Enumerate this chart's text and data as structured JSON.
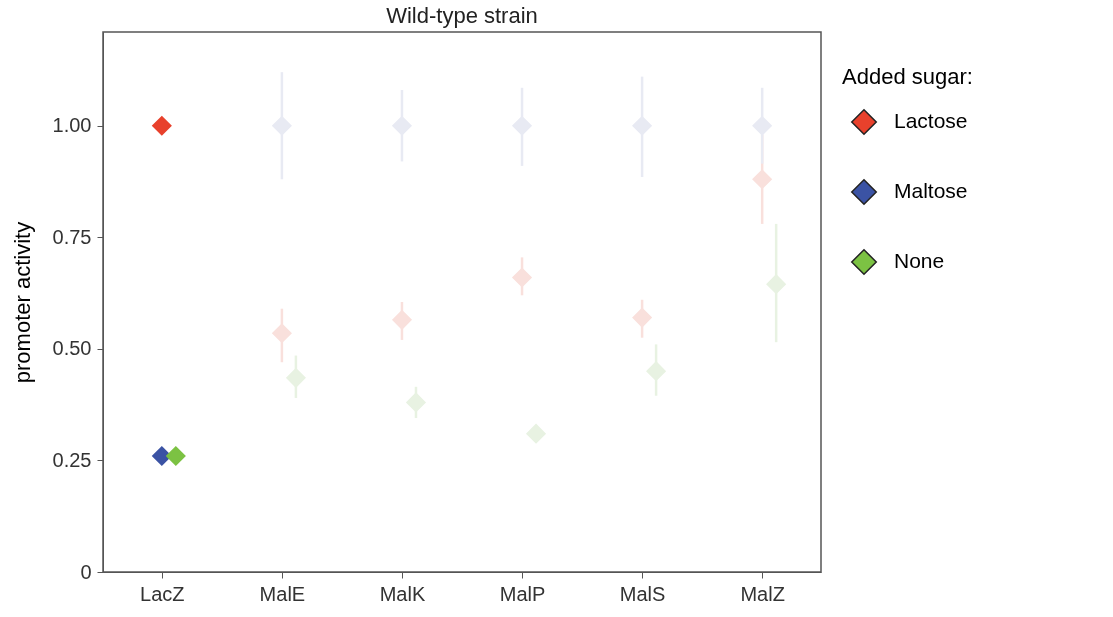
{
  "chart_data": {
    "type": "scatter",
    "title": "Wild-type strain",
    "ylabel": "promoter activity",
    "legend_title": "Added sugar:",
    "categories": [
      "LacZ",
      "MalE",
      "MalK",
      "MalP",
      "MalS",
      "MalZ"
    ],
    "series": [
      {
        "name": "Lactose",
        "color": "#e8412c",
        "values": [
          1.0,
          0.535,
          0.565,
          0.66,
          0.57,
          0.88
        ],
        "colors": [
          "#e8412c",
          "#f9e0dc",
          "#f9e0dc",
          "#f9e0dc",
          "#f9e0dc",
          "#f9e0dc"
        ],
        "errors": [
          null,
          [
            0.47,
            0.59
          ],
          [
            0.52,
            0.605
          ],
          [
            0.62,
            0.705
          ],
          [
            0.525,
            0.61
          ],
          [
            0.78,
            0.98
          ]
        ]
      },
      {
        "name": "Maltose",
        "color": "#3b53a4",
        "values": [
          0.26,
          1.0,
          1.0,
          1.0,
          1.0,
          1.0
        ],
        "colors": [
          "#3b53a4",
          "#e8eaf3",
          "#e8eaf3",
          "#e8eaf3",
          "#e8eaf3",
          "#e8eaf3"
        ],
        "errors": [
          null,
          [
            0.88,
            1.12
          ],
          [
            0.92,
            1.08
          ],
          [
            0.91,
            1.085
          ],
          [
            0.885,
            1.11
          ],
          [
            0.915,
            1.085
          ]
        ]
      },
      {
        "name": "None",
        "color": "#7cc243",
        "values": [
          0.26,
          0.435,
          0.38,
          0.31,
          0.45,
          0.645
        ],
        "colors": [
          "#7cc243",
          "#e8f2e2",
          "#e8f2e2",
          "#e8f2e2",
          "#e8f2e2",
          "#e8f2e2"
        ],
        "errors": [
          null,
          [
            0.39,
            0.485
          ],
          [
            0.345,
            0.415
          ],
          null,
          [
            0.395,
            0.51
          ],
          [
            0.515,
            0.78
          ]
        ]
      }
    ],
    "ylim": [
      0,
      1.21
    ],
    "yticks": [
      0,
      0.25,
      {
        "value": 0.5,
        "label": "0.50"
      },
      0.75,
      {
        "value": 1,
        "label": "1.00"
      }
    ],
    "marker": "diamond",
    "legend": "right",
    "grid": false
  }
}
